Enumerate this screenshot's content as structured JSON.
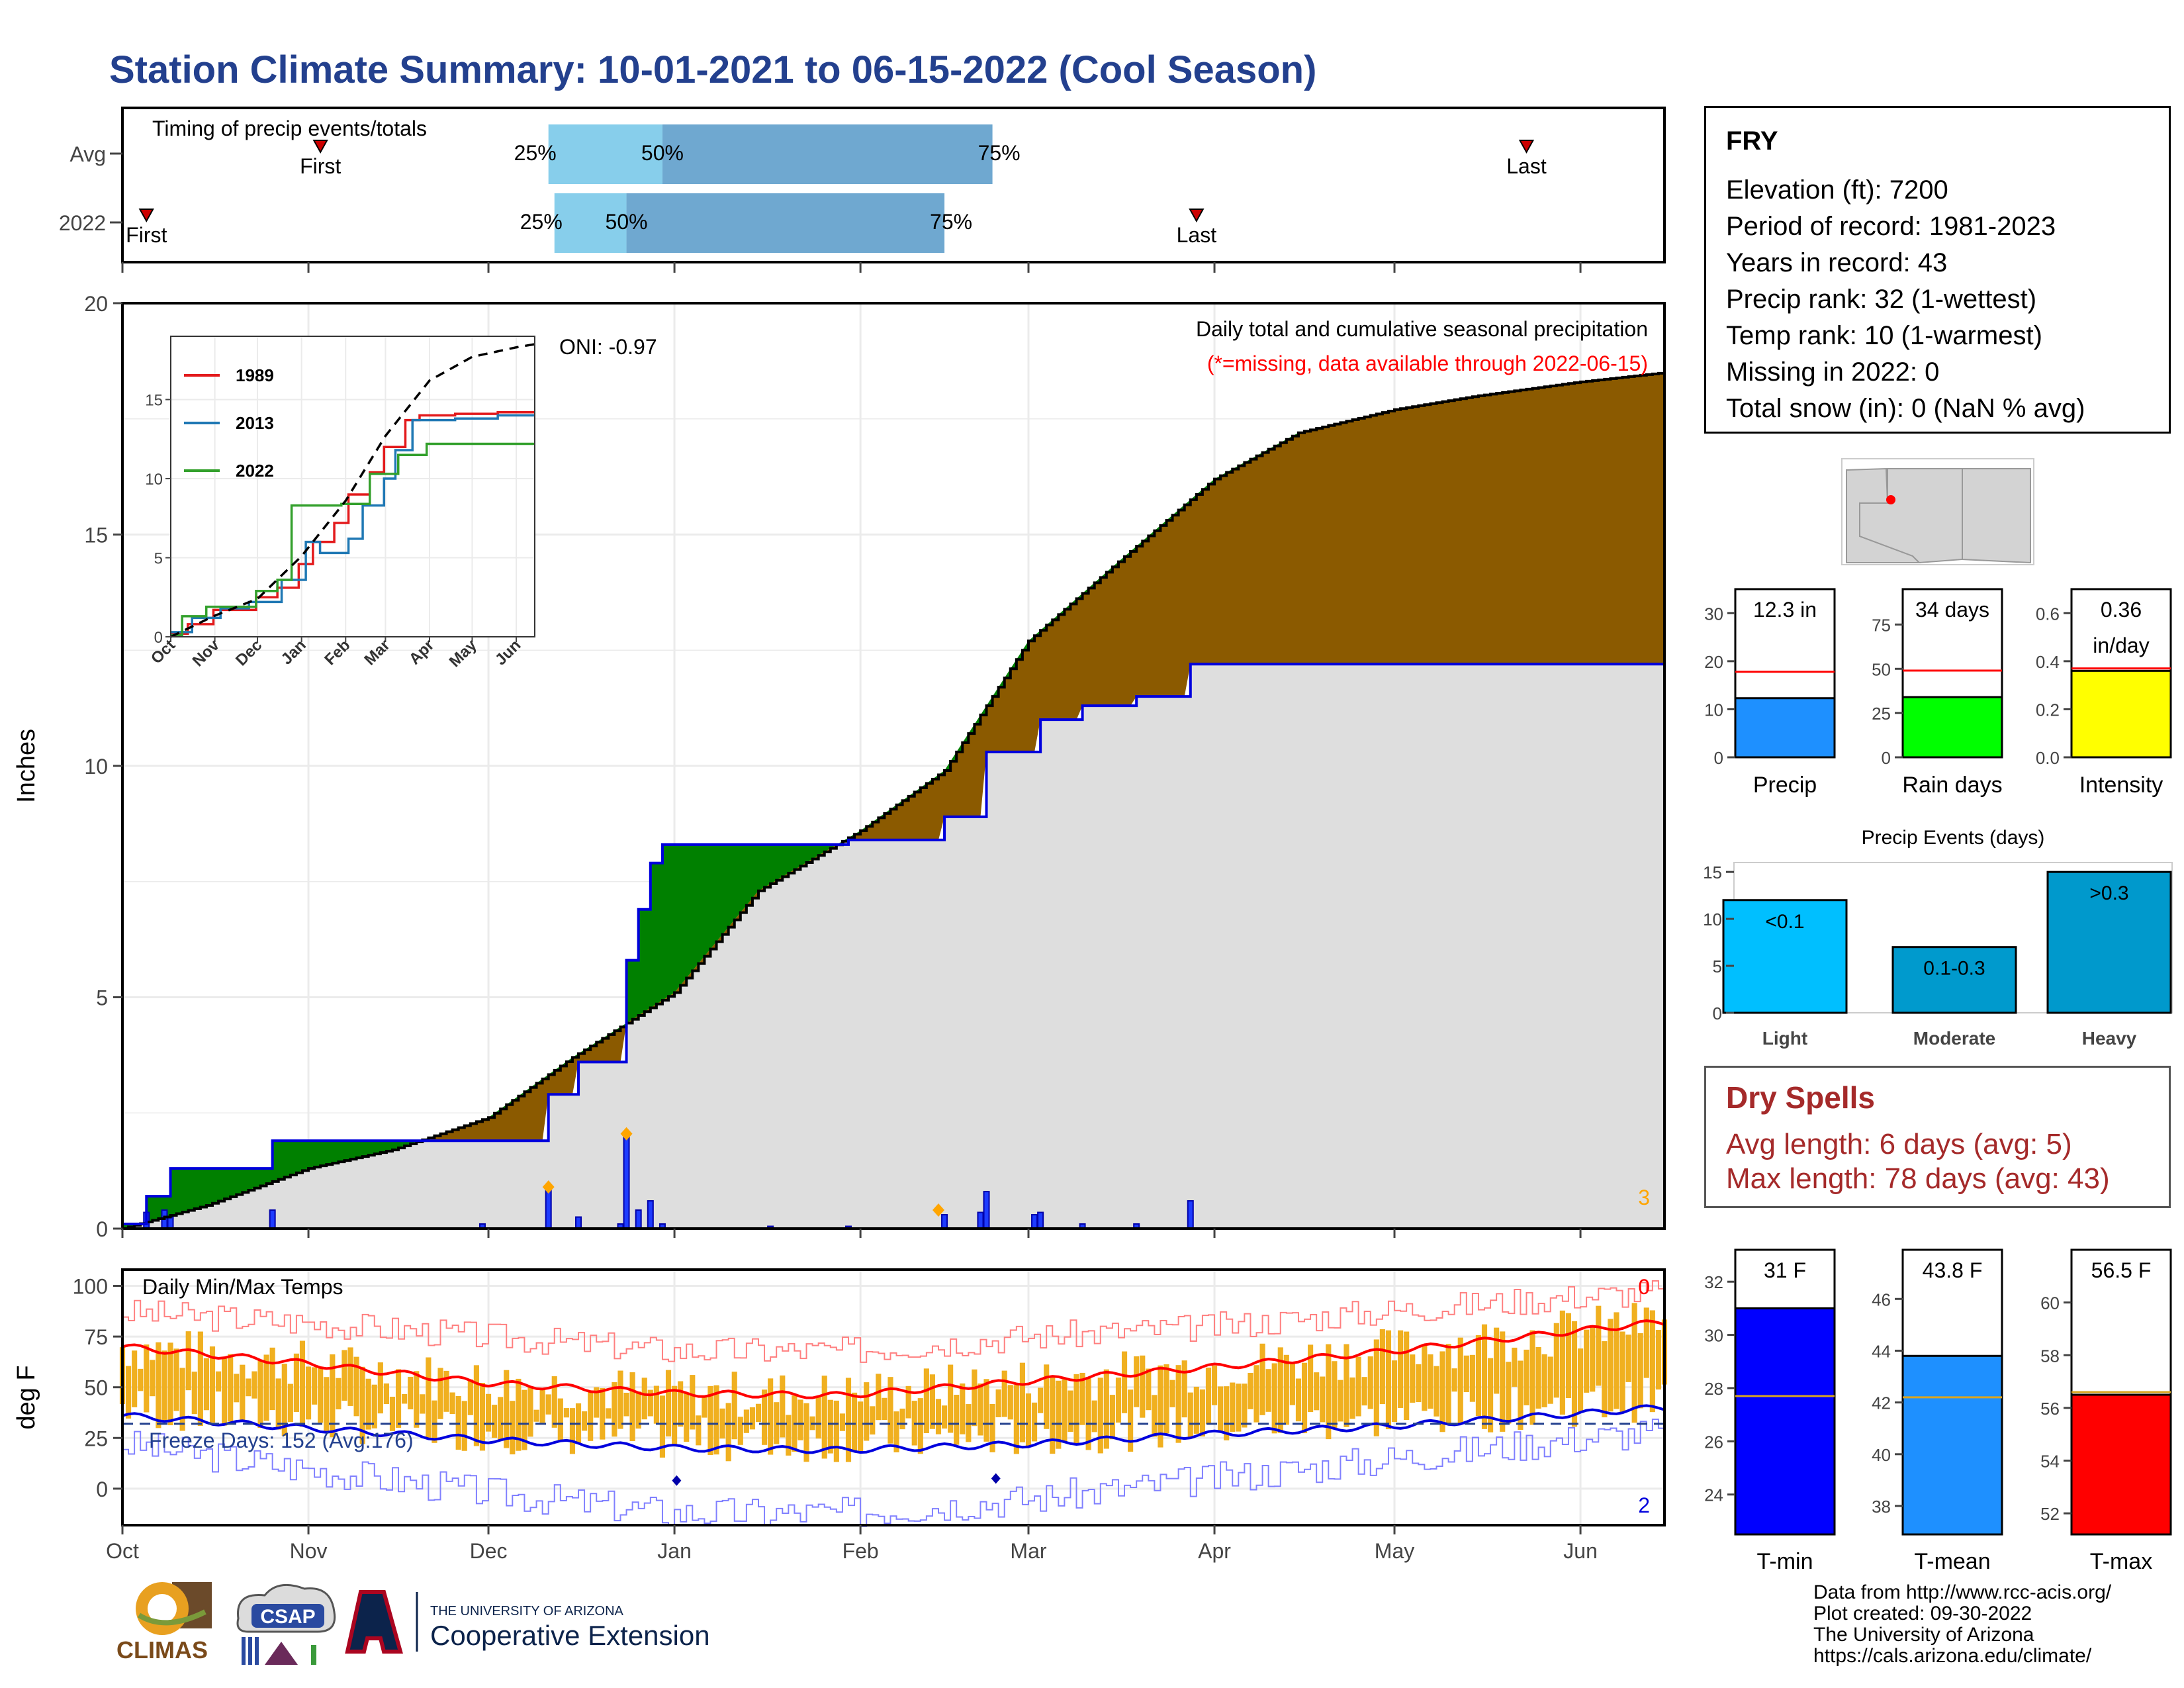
{
  "title": "Station Climate Summary: 10-01-2021 to 06-15-2022 (Cool Season)",
  "timing": {
    "label": "Timing of precip events/totals",
    "row_labels": [
      "Avg",
      "2022"
    ],
    "avg": {
      "first": "Nov 3",
      "p25": "Dec 11",
      "p50": "Dec 30",
      "p75": "Feb 23",
      "last": "May 23"
    },
    "y2022": {
      "first": "Oct 5",
      "p25": "Dec 12",
      "p50": "Dec 24",
      "p75": "Feb 15",
      "last": "Mar 29"
    },
    "marker_labels": {
      "first": "First",
      "last": "Last",
      "p25": "25%",
      "p50": "50%",
      "p75": "75%"
    },
    "colors": {
      "light": "#87ceeb",
      "dark": "#6fa8d0",
      "marker": "#cc0000"
    }
  },
  "chart_data": [
    {
      "type": "area",
      "name": "main-precip",
      "ylabel": "Inches",
      "xlim": [
        "2021-10-01",
        "2022-06-15"
      ],
      "ylim": [
        0,
        20
      ],
      "yticks": [
        0,
        5,
        10,
        15,
        20
      ],
      "months": [
        "Oct",
        "Nov",
        "Dec",
        "Jan",
        "Feb",
        "Mar",
        "Apr",
        "May",
        "Jun"
      ],
      "annotation": "Daily total and cumulative seasonal precipitation",
      "annotation_missing": "(*=missing, data available through 2022-06-15)",
      "oni": "ONI: -0.97",
      "corner_count": "3",
      "avg_cumulative": [
        [
          "2021-10-01",
          0
        ],
        [
          "2021-10-15",
          0.5
        ],
        [
          "2021-11-01",
          1.3
        ],
        [
          "2021-11-15",
          1.7
        ],
        [
          "2021-12-01",
          2.4
        ],
        [
          "2021-12-15",
          3.7
        ],
        [
          "2022-01-01",
          5.1
        ],
        [
          "2022-01-15",
          7.3
        ],
        [
          "2022-02-01",
          8.6
        ],
        [
          "2022-02-15",
          9.9
        ],
        [
          "2022-03-01",
          12.7
        ],
        [
          "2022-03-15",
          14.3
        ],
        [
          "2022-04-01",
          16.2
        ],
        [
          "2022-04-15",
          17.2
        ],
        [
          "2022-05-01",
          17.7
        ],
        [
          "2022-05-15",
          18.0
        ],
        [
          "2022-06-01",
          18.3
        ],
        [
          "2022-06-15",
          18.5
        ]
      ],
      "cumulative_2022": [
        [
          "2021-10-01",
          0.1
        ],
        [
          "2021-10-05",
          0.7
        ],
        [
          "2021-10-09",
          1.3
        ],
        [
          "2021-10-19",
          1.3
        ],
        [
          "2021-10-26",
          1.9
        ],
        [
          "2021-11-30",
          1.9
        ],
        [
          "2021-12-11",
          2.9
        ],
        [
          "2021-12-16",
          3.6
        ],
        [
          "2021-12-23",
          3.6
        ],
        [
          "2021-12-24",
          5.8
        ],
        [
          "2021-12-26",
          6.9
        ],
        [
          "2021-12-28",
          7.9
        ],
        [
          "2021-12-30",
          8.3
        ],
        [
          "2022-01-29",
          8.3
        ],
        [
          "2022-01-30",
          8.4
        ],
        [
          "2022-02-15",
          8.9
        ],
        [
          "2022-02-22",
          10.3
        ],
        [
          "2022-03-02",
          10.3
        ],
        [
          "2022-03-03",
          11.0
        ],
        [
          "2022-03-10",
          11.3
        ],
        [
          "2022-03-19",
          11.5
        ],
        [
          "2022-03-27",
          11.5
        ],
        [
          "2022-03-28",
          12.2
        ],
        [
          "2022-06-15",
          12.2
        ]
      ],
      "daily_2022": [
        [
          "2021-10-05",
          0.35
        ],
        [
          "2021-10-08",
          0.4
        ],
        [
          "2021-10-09",
          0.25
        ],
        [
          "2021-10-26",
          0.4
        ],
        [
          "2021-11-30",
          0.1
        ],
        [
          "2021-12-11",
          0.9
        ],
        [
          "2021-12-16",
          0.25
        ],
        [
          "2021-12-23",
          0.1
        ],
        [
          "2021-12-24",
          2.05
        ],
        [
          "2021-12-26",
          0.4
        ],
        [
          "2021-12-28",
          0.6
        ],
        [
          "2021-12-30",
          0.1
        ],
        [
          "2022-01-17",
          0.05
        ],
        [
          "2022-01-30",
          0.05
        ],
        [
          "2022-02-15",
          0.3
        ],
        [
          "2022-02-21",
          0.35
        ],
        [
          "2022-02-22",
          0.8
        ],
        [
          "2022-03-02",
          0.3
        ],
        [
          "2022-03-03",
          0.35
        ],
        [
          "2022-03-10",
          0.1
        ],
        [
          "2022-03-19",
          0.1
        ],
        [
          "2022-03-28",
          0.6
        ]
      ],
      "missing_markers": [
        [
          "2021-12-11",
          0.9
        ],
        [
          "2021-12-24",
          2.05
        ],
        [
          "2022-02-14",
          0.4
        ]
      ],
      "colors": {
        "above": "#008000",
        "below": "#8b5a00",
        "background_fill": "#dedede",
        "daily": "#1e3cff",
        "avg_line": "#000000",
        "line_2022": "#0000dd",
        "missing": "#ffa500"
      }
    },
    {
      "type": "line",
      "name": "inset-comparison",
      "ylim": [
        0,
        19
      ],
      "yticks": [
        0,
        5,
        10,
        15
      ],
      "months": [
        "Oct",
        "Nov",
        "Dec",
        "Jan",
        "Feb",
        "Mar",
        "Apr",
        "May",
        "Jun"
      ],
      "series": [
        {
          "name": "1989",
          "color": "#e31a1c",
          "values": [
            [
              0,
              0.2
            ],
            [
              12,
              0.8
            ],
            [
              30,
              1.7
            ],
            [
              60,
              2.5
            ],
            [
              75,
              3.1
            ],
            [
              90,
              4.6
            ],
            [
              100,
              6.0
            ],
            [
              115,
              7.2
            ],
            [
              125,
              9.0
            ],
            [
              140,
              10.4
            ],
            [
              150,
              12.0
            ],
            [
              165,
              13.7
            ],
            [
              175,
              14.0
            ],
            [
              200,
              14.1
            ],
            [
              230,
              14.2
            ],
            [
              256,
              14.2
            ]
          ]
        },
        {
          "name": "2013",
          "color": "#1f78b4",
          "values": [
            [
              0,
              0.3
            ],
            [
              15,
              1.2
            ],
            [
              35,
              1.8
            ],
            [
              55,
              2.2
            ],
            [
              78,
              3.6
            ],
            [
              95,
              6.0
            ],
            [
              105,
              5.3
            ],
            [
              125,
              6.2
            ],
            [
              135,
              8.3
            ],
            [
              150,
              10.0
            ],
            [
              158,
              11.8
            ],
            [
              170,
              13.7
            ],
            [
              185,
              13.7
            ],
            [
              200,
              13.8
            ],
            [
              230,
              14.0
            ],
            [
              256,
              14.0
            ]
          ]
        },
        {
          "name": "2022",
          "color": "#33a02c",
          "values": [
            [
              0,
              0.1
            ],
            [
              8,
              1.3
            ],
            [
              25,
              1.9
            ],
            [
              60,
              2.9
            ],
            [
              75,
              3.6
            ],
            [
              85,
              8.3
            ],
            [
              120,
              8.4
            ],
            [
              140,
              10.3
            ],
            [
              160,
              11.5
            ],
            [
              180,
              12.2
            ],
            [
              256,
              12.2
            ]
          ]
        }
      ],
      "avg_series": {
        "name": "avg",
        "color": "#000000",
        "dashed": true,
        "values": [
          [
            0,
            0
          ],
          [
            30,
            1.3
          ],
          [
            61,
            2.4
          ],
          [
            92,
            5.1
          ],
          [
            123,
            8.6
          ],
          [
            151,
            12.7
          ],
          [
            182,
            16.2
          ],
          [
            212,
            17.7
          ],
          [
            243,
            18.3
          ],
          [
            256,
            18.5
          ]
        ]
      }
    },
    {
      "type": "bar",
      "name": "precip-total",
      "categories": [
        "Precip"
      ],
      "values": [
        12.3
      ],
      "avg": 17.8,
      "ylim": [
        0,
        35
      ],
      "yticks": [
        0,
        10,
        20,
        30
      ],
      "value_label": "12.3 in",
      "color": "#1e90ff"
    },
    {
      "type": "bar",
      "name": "rain-days",
      "categories": [
        "Rain days"
      ],
      "values": [
        34
      ],
      "avg": 49,
      "ylim": [
        0,
        95
      ],
      "yticks": [
        0,
        25,
        50,
        75
      ],
      "value_label": "34 days",
      "color": "#00ff00"
    },
    {
      "type": "bar",
      "name": "intensity",
      "categories": [
        "Intensity"
      ],
      "values": [
        0.36
      ],
      "avg": 0.37,
      "ylim": [
        0,
        0.7
      ],
      "yticks": [
        0.0,
        0.2,
        0.4,
        0.6
      ],
      "value_label": "0.36",
      "value_label2": "in/day",
      "color": "#ffff00"
    },
    {
      "type": "bar",
      "name": "precip-events",
      "title": "Precip Events (days)",
      "categories": [
        "Light",
        "Moderate",
        "Heavy"
      ],
      "values": [
        12,
        7,
        15
      ],
      "bar_labels": [
        "<0.1",
        "0.1-0.3",
        ">0.3"
      ],
      "colors": [
        "#00bfff",
        "#009acd",
        "#0099cc"
      ],
      "ylim": [
        0,
        16
      ],
      "yticks": [
        0,
        5,
        10,
        15
      ]
    },
    {
      "type": "line",
      "name": "daily-temps",
      "title": "Daily Min/Max Temps",
      "ylabel": "deg F",
      "ylim": [
        -18,
        108
      ],
      "yticks": [
        0,
        25,
        50,
        75,
        100
      ],
      "months": [
        "Oct",
        "Nov",
        "Dec",
        "Jan",
        "Feb",
        "Mar",
        "Apr",
        "May",
        "Jun"
      ],
      "freeze_label": "Freeze Days: 152 (Avg:176)",
      "freeze_line": 32,
      "count_above": "0",
      "count_below": "2",
      "avg_max": [
        [
          0,
          70
        ],
        [
          30,
          62
        ],
        [
          61,
          52
        ],
        [
          92,
          47
        ],
        [
          120,
          46
        ],
        [
          151,
          53
        ],
        [
          182,
          60
        ],
        [
          212,
          68
        ],
        [
          243,
          78
        ],
        [
          256,
          82
        ]
      ],
      "avg_min": [
        [
          0,
          36
        ],
        [
          30,
          30
        ],
        [
          61,
          24
        ],
        [
          92,
          20
        ],
        [
          120,
          19
        ],
        [
          151,
          22
        ],
        [
          182,
          27
        ],
        [
          212,
          31
        ],
        [
          243,
          37
        ],
        [
          256,
          40
        ]
      ],
      "record_high": [
        [
          0,
          87
        ],
        [
          30,
          82
        ],
        [
          61,
          75
        ],
        [
          92,
          68
        ],
        [
          120,
          68
        ],
        [
          151,
          75
        ],
        [
          182,
          80
        ],
        [
          212,
          88
        ],
        [
          243,
          95
        ],
        [
          256,
          97
        ]
      ],
      "record_low": [
        [
          0,
          22
        ],
        [
          30,
          10
        ],
        [
          61,
          -2
        ],
        [
          92,
          -12
        ],
        [
          120,
          -12
        ],
        [
          151,
          -5
        ],
        [
          182,
          5
        ],
        [
          212,
          15
        ],
        [
          243,
          25
        ],
        [
          256,
          28
        ]
      ],
      "extreme_markers": [
        [
          92,
          4
        ],
        [
          145,
          5
        ]
      ],
      "colors": {
        "bars": "#f0b020",
        "avg_max": "#ff0000",
        "avg_min": "#0000dd",
        "record_high": "#ff8080",
        "record_low": "#8080ff",
        "freeze": "#23408e",
        "marker": "#0000aa"
      }
    },
    {
      "type": "bar",
      "name": "t-min",
      "categories": [
        "T-min"
      ],
      "values": [
        31
      ],
      "avg": 27.7,
      "ylim": [
        22.5,
        33.2
      ],
      "yticks": [
        24,
        26,
        28,
        30,
        32
      ],
      "value_label": "31 F",
      "color": "#0000ff"
    },
    {
      "type": "bar",
      "name": "t-mean",
      "categories": [
        "T-mean"
      ],
      "values": [
        43.8
      ],
      "avg": 42.2,
      "ylim": [
        36.9,
        47.9
      ],
      "yticks": [
        38,
        40,
        42,
        44,
        46
      ],
      "value_label": "43.8 F",
      "color": "#1e90ff"
    },
    {
      "type": "bar",
      "name": "t-max",
      "categories": [
        "T-max"
      ],
      "values": [
        56.5
      ],
      "avg": 56.6,
      "ylim": [
        51.2,
        62.0
      ],
      "yticks": [
        52,
        54,
        56,
        58,
        60
      ],
      "value_label": "56.5 F",
      "color": "#ff0000"
    }
  ],
  "info": {
    "station": "FRY",
    "lines": [
      "Elevation (ft): 7200",
      "Period of record: 1981-2023",
      "Years in record: 43",
      "Precip rank: 32 (1-wettest)",
      "Temp rank: 10 (1-warmest)",
      "Missing in 2022: 0",
      "Total snow (in): 0 (NaN % avg)"
    ]
  },
  "dry_spells": {
    "heading": "Dry Spells",
    "avg_length": "Avg length: 6 days (avg: 5)",
    "max_length": "Max length: 78 days (avg: 43)"
  },
  "credits": [
    "Data from http://www.rcc-acis.org/",
    "Plot created: 09-30-2022",
    "The University of Arizona",
    "https://cals.arizona.edu/climate/"
  ],
  "logos": {
    "climas": "CLIMAS",
    "csap": "CSAP",
    "ua_small": "THE UNIVERSITY OF ARIZONA",
    "ua_big": "Cooperative Extension"
  }
}
